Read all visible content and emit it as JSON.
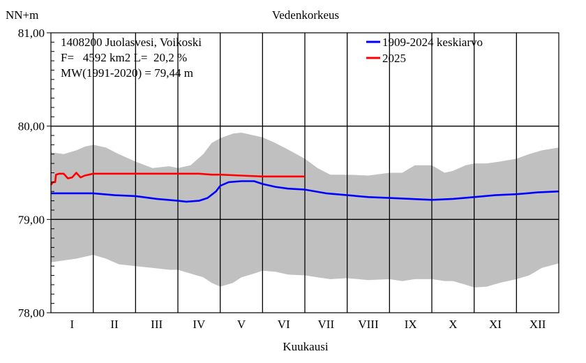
{
  "chart_data": {
    "type": "line",
    "title": "Vedenkorkeus",
    "ylabel": "NN+m",
    "xlabel": "Kuukausi",
    "ylim": [
      78.0,
      81.0
    ],
    "xlim": [
      0,
      12
    ],
    "y_ticks": [
      "78,00",
      "79,00",
      "80,00",
      "81,00"
    ],
    "y_tick_values": [
      78.0,
      79.0,
      80.0,
      81.0
    ],
    "months": [
      "I",
      "II",
      "III",
      "IV",
      "V",
      "VI",
      "VII",
      "VIII",
      "IX",
      "X",
      "XI",
      "XII"
    ],
    "info": {
      "line1": "1408200 Juolasvesi, Voikoski",
      "line2": "F=   4592 km2 L=  20,2 %",
      "line3": "MW(1991-2020) = 79,44 m"
    },
    "grid": true,
    "legend_position": "top-right",
    "colors": {
      "mean": "#0000ff",
      "current": "#ff0000",
      "range": "#c0c0c0"
    },
    "range_band": {
      "x": [
        0.0,
        0.3,
        0.6,
        0.8,
        1.0,
        1.3,
        1.6,
        2.0,
        2.4,
        2.8,
        3.0,
        3.3,
        3.6,
        3.8,
        4.0,
        4.3,
        4.5,
        4.8,
        5.0,
        5.3,
        5.6,
        6.0,
        6.3,
        6.6,
        7.0,
        7.5,
        8.0,
        8.3,
        8.6,
        9.0,
        9.3,
        9.5,
        9.8,
        10.0,
        10.3,
        10.6,
        11.0,
        11.3,
        11.6,
        12.0
      ],
      "high": [
        79.72,
        79.7,
        79.74,
        79.78,
        79.8,
        79.77,
        79.7,
        79.62,
        79.55,
        79.57,
        79.55,
        79.58,
        79.7,
        79.82,
        79.87,
        79.92,
        79.93,
        79.9,
        79.88,
        79.82,
        79.75,
        79.65,
        79.55,
        79.48,
        79.48,
        79.47,
        79.5,
        79.5,
        79.58,
        79.58,
        79.5,
        79.52,
        79.58,
        79.6,
        79.6,
        79.62,
        79.65,
        79.7,
        79.74,
        79.77
      ],
      "low": [
        78.54,
        78.56,
        78.58,
        78.6,
        78.62,
        78.58,
        78.52,
        78.5,
        78.48,
        78.46,
        78.46,
        78.42,
        78.38,
        78.32,
        78.28,
        78.32,
        78.38,
        78.42,
        78.45,
        78.44,
        78.41,
        78.4,
        78.38,
        78.36,
        78.37,
        78.35,
        78.36,
        78.34,
        78.36,
        78.36,
        78.34,
        78.34,
        78.3,
        78.27,
        78.28,
        78.32,
        78.36,
        78.4,
        78.48,
        78.53
      ]
    },
    "series": [
      {
        "name": "1909-2024 keskiarvo",
        "x": [
          0.0,
          0.5,
          1.0,
          1.5,
          2.0,
          2.5,
          3.0,
          3.2,
          3.5,
          3.7,
          3.9,
          4.0,
          4.2,
          4.5,
          4.8,
          5.0,
          5.3,
          5.6,
          6.0,
          6.5,
          7.0,
          7.5,
          8.0,
          8.5,
          9.0,
          9.5,
          10.0,
          10.5,
          11.0,
          11.5,
          12.0
        ],
        "values": [
          79.28,
          79.28,
          79.28,
          79.26,
          79.25,
          79.22,
          79.2,
          79.19,
          79.2,
          79.23,
          79.3,
          79.36,
          79.4,
          79.41,
          79.41,
          79.38,
          79.35,
          79.33,
          79.32,
          79.28,
          79.26,
          79.24,
          79.23,
          79.22,
          79.21,
          79.22,
          79.24,
          79.26,
          79.27,
          79.29,
          79.3
        ]
      },
      {
        "name": "2025",
        "x": [
          0.0,
          0.05,
          0.1,
          0.12,
          0.2,
          0.3,
          0.4,
          0.5,
          0.6,
          0.7,
          0.8,
          0.9,
          1.0,
          1.5,
          2.0,
          2.5,
          3.0,
          3.5,
          3.8,
          4.0,
          4.5,
          5.0,
          5.5,
          5.8,
          6.0
        ],
        "values": [
          79.37,
          79.4,
          79.4,
          79.48,
          79.49,
          79.49,
          79.44,
          79.45,
          79.5,
          79.45,
          79.47,
          79.48,
          79.49,
          79.49,
          79.49,
          79.49,
          79.49,
          79.49,
          79.48,
          79.48,
          79.47,
          79.46,
          79.46,
          79.46,
          79.46
        ]
      }
    ]
  }
}
